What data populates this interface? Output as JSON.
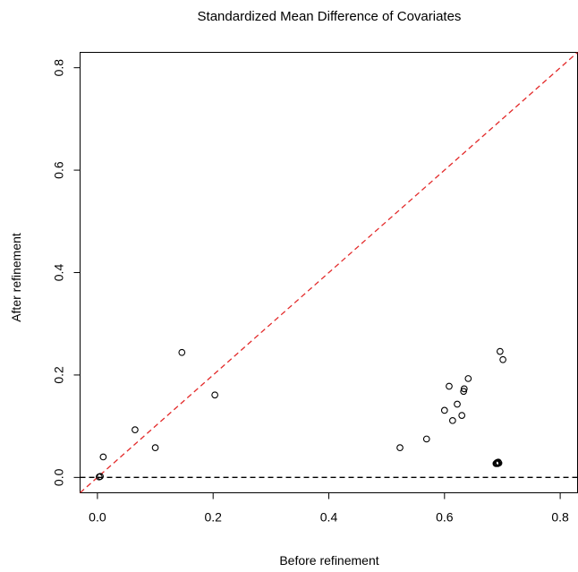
{
  "chart_data": {
    "type": "scatter",
    "title": "Standardized Mean Difference of Covariates",
    "xlabel": "Before refinement",
    "ylabel": "After refinement",
    "xlim": [
      -0.03,
      0.83
    ],
    "ylim": [
      -0.03,
      0.83
    ],
    "xticks": [
      "0.0",
      "0.2",
      "0.4",
      "0.6",
      "0.8"
    ],
    "yticks": [
      "0.0",
      "0.2",
      "0.4",
      "0.6",
      "0.8"
    ],
    "grid": false,
    "reference_lines": [
      {
        "kind": "identity",
        "style": "dashed",
        "color": "#e32a2a"
      },
      {
        "kind": "horizontal",
        "y": 0,
        "style": "dashed",
        "color": "#000000"
      }
    ],
    "points": [
      {
        "x": 0.003,
        "y": 0.001
      },
      {
        "x": 0.005,
        "y": 0.002
      },
      {
        "x": 0.01,
        "y": 0.04
      },
      {
        "x": 0.065,
        "y": 0.093
      },
      {
        "x": 0.1,
        "y": 0.058
      },
      {
        "x": 0.146,
        "y": 0.244
      },
      {
        "x": 0.203,
        "y": 0.161
      },
      {
        "x": 0.523,
        "y": 0.058
      },
      {
        "x": 0.569,
        "y": 0.075
      },
      {
        "x": 0.6,
        "y": 0.131
      },
      {
        "x": 0.608,
        "y": 0.178
      },
      {
        "x": 0.614,
        "y": 0.111
      },
      {
        "x": 0.622,
        "y": 0.143
      },
      {
        "x": 0.63,
        "y": 0.121
      },
      {
        "x": 0.633,
        "y": 0.168
      },
      {
        "x": 0.634,
        "y": 0.173
      },
      {
        "x": 0.641,
        "y": 0.193
      },
      {
        "x": 0.689,
        "y": 0.027
      },
      {
        "x": 0.69,
        "y": 0.028
      },
      {
        "x": 0.691,
        "y": 0.029
      },
      {
        "x": 0.692,
        "y": 0.027
      },
      {
        "x": 0.693,
        "y": 0.03
      },
      {
        "x": 0.694,
        "y": 0.028
      },
      {
        "x": 0.696,
        "y": 0.246
      },
      {
        "x": 0.701,
        "y": 0.23
      }
    ]
  }
}
